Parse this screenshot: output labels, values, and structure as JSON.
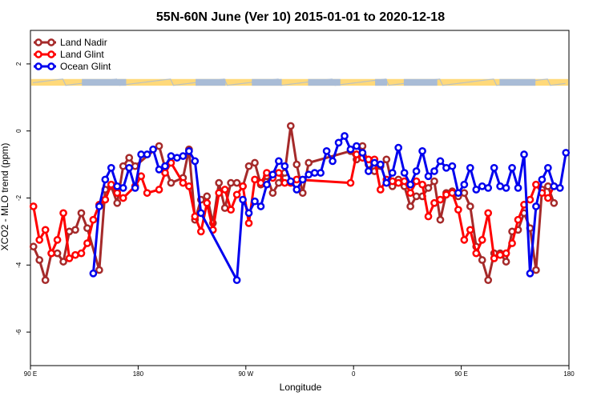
{
  "chart_data": {
    "type": "line",
    "title": "55N-60N June (Ver 10)   2015-01-01 to 2020-12-18",
    "xlabel": "Longitude",
    "ylabel": "XCO2 - MLO trend (ppm)",
    "xlim": [
      90,
      540
    ],
    "ylim": [
      -7,
      3
    ],
    "x_ticks": [
      {
        "value": 90,
        "label": "90 E"
      },
      {
        "value": 180,
        "label": "180"
      },
      {
        "value": 270,
        "label": "90 W"
      },
      {
        "value": 360,
        "label": "0"
      },
      {
        "value": 450,
        "label": "90 E"
      },
      {
        "value": 540,
        "label": "180"
      }
    ],
    "y_ticks": [
      {
        "value": -6,
        "label": "-6"
      },
      {
        "value": -4,
        "label": "-4"
      },
      {
        "value": -2,
        "label": "-2"
      },
      {
        "value": 0,
        "label": "0"
      },
      {
        "value": 2,
        "label": "2"
      }
    ],
    "legend_position": "top-left",
    "land_mask_band": {
      "y_range": [
        1.35,
        1.55
      ],
      "land_color": "#FFD97A",
      "ocean_color": "#A9BCD6"
    },
    "series": [
      {
        "name": "Land Nadir",
        "color": "#A52A2A",
        "x": [
          92.5,
          97.5,
          102.5,
          107.5,
          112.5,
          117.5,
          122.5,
          127.5,
          132.5,
          137.5,
          147.5,
          152.5,
          157.5,
          162.5,
          167.5,
          172.5,
          177.5,
          197.5,
          202.5,
          207.5,
          217.5,
          222.5,
          227.5,
          232.5,
          237.5,
          242.5,
          247.5,
          252.5,
          257.5,
          262.5,
          267.5,
          272.5,
          277.5,
          282.5,
          287.5,
          292.5,
          297.5,
          302.5,
          307.5,
          312.5,
          317.5,
          322.5,
          357.5,
          362.5,
          367.5,
          372.5,
          377.5,
          382.5,
          387.5,
          392.5,
          397.5,
          402.5,
          407.5,
          412.5,
          417.5,
          422.5,
          427.5,
          432.5,
          437.5,
          442.5,
          447.5,
          452.5,
          457.5,
          462.5,
          467.5,
          472.5,
          477.5,
          482.5,
          487.5,
          492.5,
          497.5,
          502.5,
          507.5,
          512.5,
          517.5,
          522.5,
          527.5
        ],
        "values": [
          -3.45,
          -3.85,
          -4.45,
          -3.65,
          -3.65,
          -3.9,
          -3,
          -2.95,
          -2.45,
          -2.9,
          -4.15,
          -1.75,
          -1.65,
          -2.15,
          -1.05,
          -0.8,
          -1.05,
          -0.45,
          -1.1,
          -1.55,
          -1.4,
          -0.55,
          -2.65,
          -2.05,
          -1.95,
          -2.75,
          -1.55,
          -2.3,
          -1.55,
          -1.55,
          -1.65,
          -1.05,
          -0.95,
          -1.6,
          -1.35,
          -1.85,
          -1.55,
          -1.25,
          0.15,
          -1,
          -1.85,
          -0.95,
          -0.6,
          -0.85,
          -0.45,
          -1,
          -1.2,
          -1.05,
          -0.85,
          -1.65,
          -1.45,
          -1.65,
          -2.25,
          -1.95,
          -1.95,
          -1.7,
          -1.5,
          -2.65,
          -1.85,
          -1.8,
          -1.95,
          -1.85,
          -2.25,
          -3.45,
          -3.85,
          -4.45,
          -3.65,
          -3.65,
          -3.9,
          -3,
          -2.95,
          -2.45,
          -2.9,
          -4.15,
          -1.75,
          -1.65,
          -2.15
        ]
      },
      {
        "name": "Land Glint",
        "color": "#FF0000",
        "x": [
          92.5,
          97.5,
          102.5,
          107.5,
          112.5,
          117.5,
          122.5,
          127.5,
          132.5,
          137.5,
          142.5,
          147.5,
          152.5,
          157.5,
          162.5,
          167.5,
          177.5,
          182.5,
          187.5,
          197.5,
          202.5,
          207.5,
          217.5,
          222.5,
          227.5,
          232.5,
          237.5,
          242.5,
          247.5,
          252.5,
          257.5,
          262.5,
          267.5,
          272.5,
          277.5,
          282.5,
          287.5,
          292.5,
          297.5,
          302.5,
          307.5,
          312.5,
          357.5,
          362.5,
          367.5,
          372.5,
          377.5,
          382.5,
          387.5,
          392.5,
          397.5,
          402.5,
          407.5,
          412.5,
          417.5,
          422.5,
          427.5,
          432.5,
          437.5,
          442.5,
          447.5,
          452.5,
          457.5,
          462.5,
          467.5,
          472.5,
          477.5,
          482.5,
          487.5,
          492.5,
          497.5,
          502.5,
          507.5,
          512.5,
          517.5,
          522.5,
          527.5
        ],
        "values": [
          -2.25,
          -3.25,
          -2.95,
          -3.65,
          -3.25,
          -2.45,
          -3.8,
          -3.7,
          -3.65,
          -3.35,
          -2.65,
          -2.2,
          -2.05,
          -1.6,
          -1.85,
          -2,
          -1.65,
          -1.35,
          -1.85,
          -1.75,
          -1.25,
          -0.95,
          -1.55,
          -1.65,
          -2.55,
          -3,
          -2.15,
          -2.95,
          -1.85,
          -1.75,
          -2.35,
          -1.9,
          -1.65,
          -2.75,
          -1.45,
          -1.55,
          -1.25,
          -1.4,
          -1.25,
          -1.55,
          -1.55,
          -1.45,
          -1.55,
          -0.7,
          -0.8,
          -0.85,
          -0.85,
          -1.75,
          -1.45,
          -1.5,
          -1.55,
          -1.5,
          -1.85,
          -1.5,
          -1.6,
          -2.55,
          -2.15,
          -2.05,
          -1.9,
          -1.85,
          -2.35,
          -3.25,
          -2.95,
          -3.65,
          -3.25,
          -2.45,
          -3.8,
          -3.7,
          -3.65,
          -3.35,
          -2.65,
          -2.2,
          -2.05,
          -1.6,
          -1.85,
          -2,
          -1.65
        ]
      },
      {
        "name": "Ocean Glint",
        "color": "#0000EE",
        "x": [
          142.5,
          147.5,
          152.5,
          157.5,
          162.5,
          167.5,
          172.5,
          177.5,
          182.5,
          187.5,
          192.5,
          197.5,
          202.5,
          207.5,
          212.5,
          217.5,
          222.5,
          227.5,
          232.5,
          262.5,
          267.5,
          272.5,
          277.5,
          282.5,
          287.5,
          292.5,
          297.5,
          302.5,
          307.5,
          312.5,
          317.5,
          322.5,
          327.5,
          332.5,
          337.5,
          342.5,
          347.5,
          352.5,
          357.5,
          362.5,
          367.5,
          372.5,
          377.5,
          382.5,
          387.5,
          392.5,
          397.5,
          402.5,
          407.5,
          412.5,
          417.5,
          422.5,
          427.5,
          432.5,
          437.5,
          442.5,
          447.5,
          452.5,
          457.5,
          462.5,
          467.5,
          472.5,
          477.5,
          482.5,
          487.5,
          492.5,
          497.5,
          502.5,
          507.5,
          512.5,
          517.5,
          522.5,
          527.5,
          532.5,
          537.5
        ],
        "values": [
          -4.25,
          -2.25,
          -1.45,
          -1.1,
          -1.65,
          -1.7,
          -1.1,
          -1.7,
          -0.7,
          -0.7,
          -0.55,
          -1.15,
          -1.05,
          -0.75,
          -0.8,
          -0.75,
          -0.6,
          -0.9,
          -2.45,
          -4.45,
          -2.05,
          -2.45,
          -2.1,
          -2.25,
          -1.6,
          -1.3,
          -0.9,
          -1.05,
          -1.5,
          -1.75,
          -1.45,
          -1.3,
          -1.25,
          -1.25,
          -0.6,
          -0.9,
          -0.35,
          -0.15,
          -0.55,
          -0.45,
          -0.65,
          -1.2,
          -0.95,
          -1,
          -1.55,
          -1.25,
          -0.5,
          -1.25,
          -1.6,
          -1.2,
          -0.6,
          -1.35,
          -1.2,
          -0.9,
          -1.1,
          -1.05,
          -1.85,
          -1.6,
          -1.1,
          -1.75,
          -1.65,
          -1.7,
          -1.1,
          -1.65,
          -1.7,
          -1.1,
          -1.7,
          -0.7,
          -4.25,
          -2.25,
          -1.45,
          -1.1,
          -1.65,
          -1.7,
          -0.65
        ]
      }
    ]
  }
}
